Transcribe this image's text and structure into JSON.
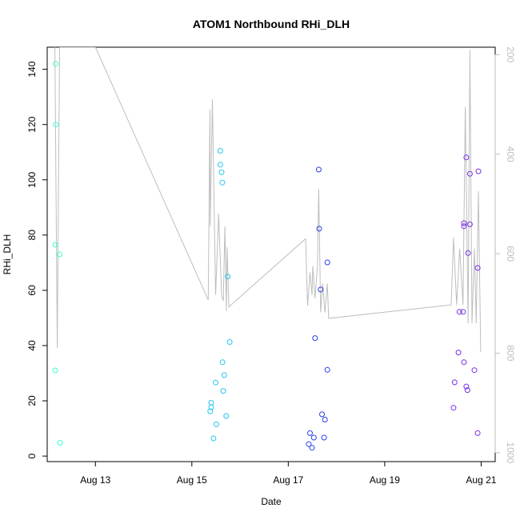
{
  "chart_data": {
    "type": "scatter",
    "title": "ATOM1 Northbound RHi_DLH",
    "xlabel": "Date",
    "ylabel": "RHi_DLH",
    "xlim": [
      "2020-08-12T00:00",
      "2020-08-21T07:00"
    ],
    "ylim": [
      -2,
      148
    ],
    "x_ticks": [
      {
        "date": "2020-08-13",
        "label": "Aug 13"
      },
      {
        "date": "2020-08-15",
        "label": "Aug 15"
      },
      {
        "date": "2020-08-17",
        "label": "Aug 17"
      },
      {
        "date": "2020-08-19",
        "label": "Aug 19"
      },
      {
        "date": "2020-08-21",
        "label": "Aug 21"
      }
    ],
    "y_ticks": [
      0,
      20,
      40,
      60,
      80,
      100,
      120,
      140
    ],
    "y2_ticks": [
      200,
      400,
      600,
      800,
      1000
    ],
    "y2_lim": [
      185,
      1018
    ],
    "y2_inverted": true,
    "y2_color": "#bebebe",
    "grid": false,
    "series": [
      {
        "color": "#3fffd0",
        "points": [
          [
            "2020-08-12T04:12",
            142
          ],
          [
            "2020-08-12T04:19",
            120
          ],
          [
            "2020-08-12T04:05",
            76.5
          ],
          [
            "2020-08-12T06:10",
            73
          ],
          [
            "2020-08-12T04:00",
            31
          ],
          [
            "2020-08-12T06:24",
            4.8
          ]
        ]
      },
      {
        "color": "#26c6ee",
        "points": [
          [
            "2020-08-15T14:10",
            110.5
          ],
          [
            "2020-08-15T14:10",
            105.5
          ],
          [
            "2020-08-15T14:48",
            102.7
          ],
          [
            "2020-08-15T15:10",
            99
          ],
          [
            "2020-08-15T17:50",
            65
          ],
          [
            "2020-08-15T18:50",
            41.3
          ],
          [
            "2020-08-15T15:15",
            34
          ],
          [
            "2020-08-15T16:07",
            29.3
          ],
          [
            "2020-08-15T11:49",
            26.6
          ],
          [
            "2020-08-15T15:40",
            23.6
          ],
          [
            "2020-08-15T09:38",
            19.3
          ],
          [
            "2020-08-15T09:38",
            17.7
          ],
          [
            "2020-08-15T09:10",
            16.2
          ],
          [
            "2020-08-15T17:07",
            14.5
          ],
          [
            "2020-08-15T12:13",
            11.5
          ],
          [
            "2020-08-15T10:48",
            6.4
          ]
        ]
      },
      {
        "color": "#2a40e6",
        "points": [
          [
            "2020-08-17T15:10",
            103.7
          ],
          [
            "2020-08-17T15:24",
            82.3
          ],
          [
            "2020-08-17T19:27",
            70.1
          ],
          [
            "2020-08-17T16:07",
            60.3
          ],
          [
            "2020-08-17T13:20",
            42.7
          ],
          [
            "2020-08-17T19:27",
            31.2
          ],
          [
            "2020-08-17T16:48",
            15.1
          ],
          [
            "2020-08-17T18:15",
            13.2
          ],
          [
            "2020-08-17T10:48",
            8.3
          ],
          [
            "2020-08-17T12:44",
            6.7
          ],
          [
            "2020-08-17T17:50",
            6.7
          ],
          [
            "2020-08-17T10:14",
            4.3
          ],
          [
            "2020-08-17T11:49",
            3.0
          ]
        ]
      },
      {
        "color": "#7a2fe6",
        "points": [
          [
            "2020-08-20T16:37",
            108.1
          ],
          [
            "2020-08-20T18:26",
            102.2
          ],
          [
            "2020-08-20T22:38",
            103.1
          ],
          [
            "2020-08-20T15:25",
            84.3
          ],
          [
            "2020-08-20T18:26",
            83.9
          ],
          [
            "2020-08-20T15:25",
            83.2
          ],
          [
            "2020-08-20T17:31",
            73.5
          ],
          [
            "2020-08-20T22:17",
            68.1
          ],
          [
            "2020-08-20T13:13",
            52.2
          ],
          [
            "2020-08-20T15:00",
            52.2
          ],
          [
            "2020-08-20T12:44",
            37.5
          ],
          [
            "2020-08-20T15:25",
            34
          ],
          [
            "2020-08-20T20:38",
            31.1
          ],
          [
            "2020-08-20T10:48",
            26.7
          ],
          [
            "2020-08-20T16:37",
            25.2
          ],
          [
            "2020-08-20T17:12",
            23.9
          ],
          [
            "2020-08-20T10:14",
            17.5
          ],
          [
            "2020-08-20T22:17",
            8.3
          ]
        ]
      }
    ],
    "pressure_line": {
      "color": "#bebebe",
      "points": [
        [
          "2020-08-12T03:50",
          185
        ],
        [
          "2020-08-12T05:02",
          790
        ],
        [
          "2020-08-12T06:10",
          185
        ],
        [
          "2020-08-13T00:00",
          185
        ],
        [
          "2020-08-15T08:10",
          693
        ],
        [
          "2020-08-15T09:00",
          310
        ],
        [
          "2020-08-15T09:10",
          545
        ],
        [
          "2020-08-15T10:14",
          290
        ],
        [
          "2020-08-15T11:49",
          683
        ],
        [
          "2020-08-15T13:20",
          520
        ],
        [
          "2020-08-15T14:48",
          683
        ],
        [
          "2020-08-15T15:40",
          695
        ],
        [
          "2020-08-15T16:26",
          545
        ],
        [
          "2020-08-15T17:12",
          715
        ],
        [
          "2020-08-15T17:31",
          587
        ],
        [
          "2020-08-15T18:26",
          707
        ],
        [
          "2020-08-17T08:38",
          570
        ],
        [
          "2020-08-17T09:38",
          705
        ],
        [
          "2020-08-17T10:48",
          638
        ],
        [
          "2020-08-17T11:49",
          683
        ],
        [
          "2020-08-17T12:13",
          625
        ],
        [
          "2020-08-17T13:20",
          690
        ],
        [
          "2020-08-17T14:30",
          625
        ],
        [
          "2020-08-17T15:10",
          470
        ],
        [
          "2020-08-17T16:07",
          718
        ],
        [
          "2020-08-17T17:07",
          660
        ],
        [
          "2020-08-17T18:15",
          718
        ],
        [
          "2020-08-17T19:27",
          660
        ],
        [
          "2020-08-17T20:05",
          730
        ],
        [
          "2020-08-20T09:05",
          703
        ],
        [
          "2020-08-20T10:14",
          568
        ],
        [
          "2020-08-20T11:49",
          703
        ],
        [
          "2020-08-20T13:20",
          590
        ],
        [
          "2020-08-20T15:00",
          703
        ],
        [
          "2020-08-20T16:07",
          305
        ],
        [
          "2020-08-20T17:31",
          740
        ],
        [
          "2020-08-20T18:26",
          190
        ],
        [
          "2020-08-20T19:27",
          740
        ],
        [
          "2020-08-20T20:38",
          590
        ],
        [
          "2020-08-20T21:33",
          740
        ],
        [
          "2020-08-20T22:38",
          475
        ],
        [
          "2020-08-20T23:48",
          798
        ]
      ]
    }
  }
}
